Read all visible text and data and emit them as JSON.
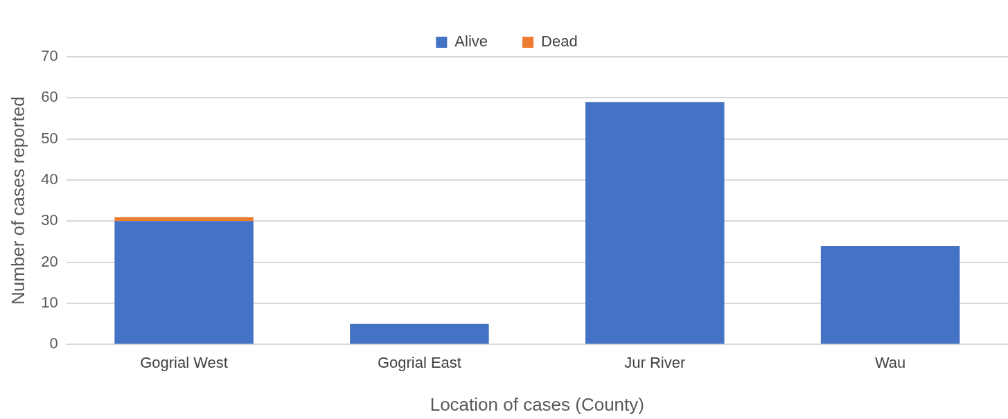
{
  "chart_data": {
    "type": "bar",
    "stacked": true,
    "xlabel": "Location of cases (County)",
    "ylabel": "Number of cases reported",
    "categories": [
      "Gogrial West",
      "Gogrial East",
      "Jur River",
      "Wau"
    ],
    "series": [
      {
        "name": "Alive",
        "color": "#4472c4",
        "values": [
          30,
          5,
          59,
          24
        ]
      },
      {
        "name": "Dead",
        "color": "#ed7d31",
        "values": [
          1,
          0,
          0,
          0
        ]
      }
    ],
    "ylim": [
      0,
      70
    ],
    "yticks": [
      0,
      10,
      20,
      30,
      40,
      50,
      60,
      70
    ],
    "grid": "y",
    "legend": "top"
  }
}
